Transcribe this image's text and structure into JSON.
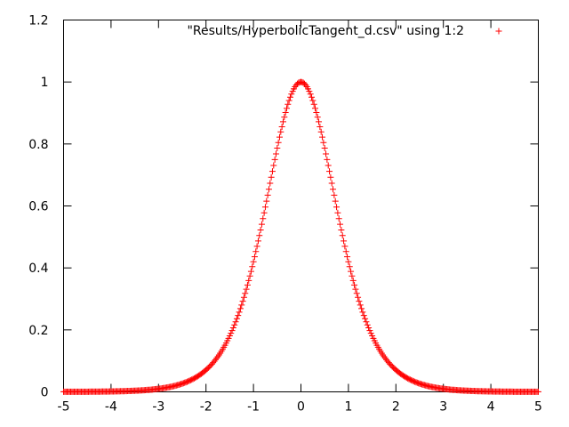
{
  "chart_data": {
    "type": "scatter",
    "title": "",
    "xlabel": "",
    "ylabel": "",
    "xlim": [
      -5,
      5
    ],
    "ylim": [
      0,
      1.2
    ],
    "x_ticks": [
      -5,
      -4,
      -3,
      -2,
      -1,
      0,
      1,
      2,
      3,
      4,
      5
    ],
    "y_ticks": [
      0,
      0.2,
      0.4,
      0.6,
      0.8,
      1,
      1.2
    ],
    "grid": false,
    "legend_position": "top-right",
    "series": [
      {
        "name": "\"Results/HyperbolicTangent_d.csv\" using 1:2",
        "color": "#ff0000",
        "marker": "plus",
        "x_start": -5,
        "x_end": 5,
        "point_count": 401,
        "function": "1 - tanh(x)^2"
      }
    ]
  }
}
